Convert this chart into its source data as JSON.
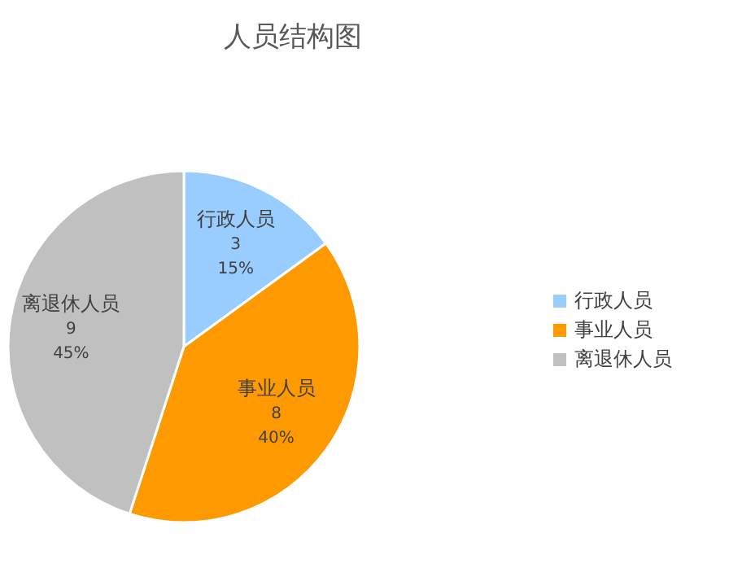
{
  "chart_data": {
    "type": "pie",
    "title": "人员结构图",
    "categories": [
      "行政人员",
      "事业人员",
      "离退休人员"
    ],
    "values": [
      3,
      8,
      9
    ],
    "colors": [
      "#99ccff",
      "#ff9900",
      "#c0c0c0"
    ],
    "value_labels": [
      "3\n15%",
      "8\n40%",
      "9\n45%"
    ],
    "legend": "right"
  }
}
